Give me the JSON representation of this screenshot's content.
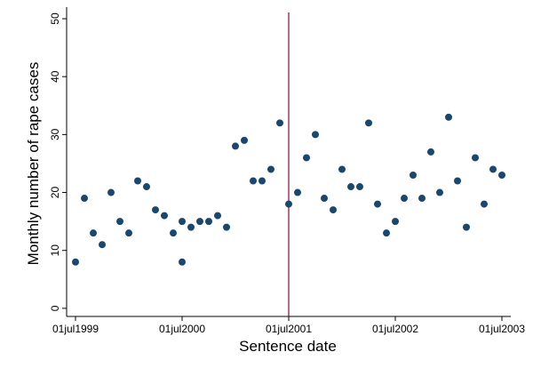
{
  "chart_data": {
    "type": "scatter",
    "x_label": "Sentence date",
    "y_label": "Monthly number of rape cases",
    "x": [
      "01jul1999",
      "01aug1999",
      "01sep1999",
      "01oct1999",
      "01nov1999",
      "01dec1999",
      "01jan2000",
      "01feb2000",
      "01mar2000",
      "01apr2000",
      "01may2000",
      "01jun2000",
      "01jul2000",
      "01jul2000",
      "01aug2000",
      "01sep2000",
      "01oct2000",
      "01nov2000",
      "01dec2000",
      "01jan2001",
      "01feb2001",
      "01mar2001",
      "01apr2001",
      "01may2001",
      "01jun2001",
      "01jul2001",
      "01aug2001",
      "01sep2001",
      "01oct2001",
      "01nov2001",
      "01dec2001",
      "01jan2002",
      "01feb2002",
      "01mar2002",
      "01apr2002",
      "01may2002",
      "01jun2002",
      "01jul2002",
      "01aug2002",
      "01sep2002",
      "01oct2002",
      "01nov2002",
      "01dec2002",
      "01jan2003",
      "01feb2003",
      "01mar2003",
      "01apr2003",
      "01may2003",
      "01jun2003",
      "01jul2003"
    ],
    "values": [
      8,
      19,
      13,
      11,
      20,
      15,
      13,
      22,
      21,
      17,
      16,
      13,
      15,
      8,
      14,
      15,
      15,
      16,
      14,
      28,
      29,
      22,
      22,
      24,
      32,
      18,
      20,
      26,
      30,
      19,
      17,
      24,
      21,
      21,
      32,
      18,
      13,
      15,
      19,
      23,
      19,
      27,
      20,
      33,
      22,
      14,
      26,
      18,
      24,
      23
    ],
    "color": "#1a476f",
    "xlim": [
      "01jun1999",
      "01aug2003"
    ],
    "xticks": [
      "01jul1999",
      "01jul2000",
      "01jul2001",
      "01jul2002",
      "01jul2003"
    ],
    "ylim": [
      -1.4,
      52
    ],
    "yticks": [
      0,
      10,
      20,
      30,
      40,
      50
    ],
    "vline": {
      "x": "01jul2001",
      "color": "#990033"
    }
  }
}
